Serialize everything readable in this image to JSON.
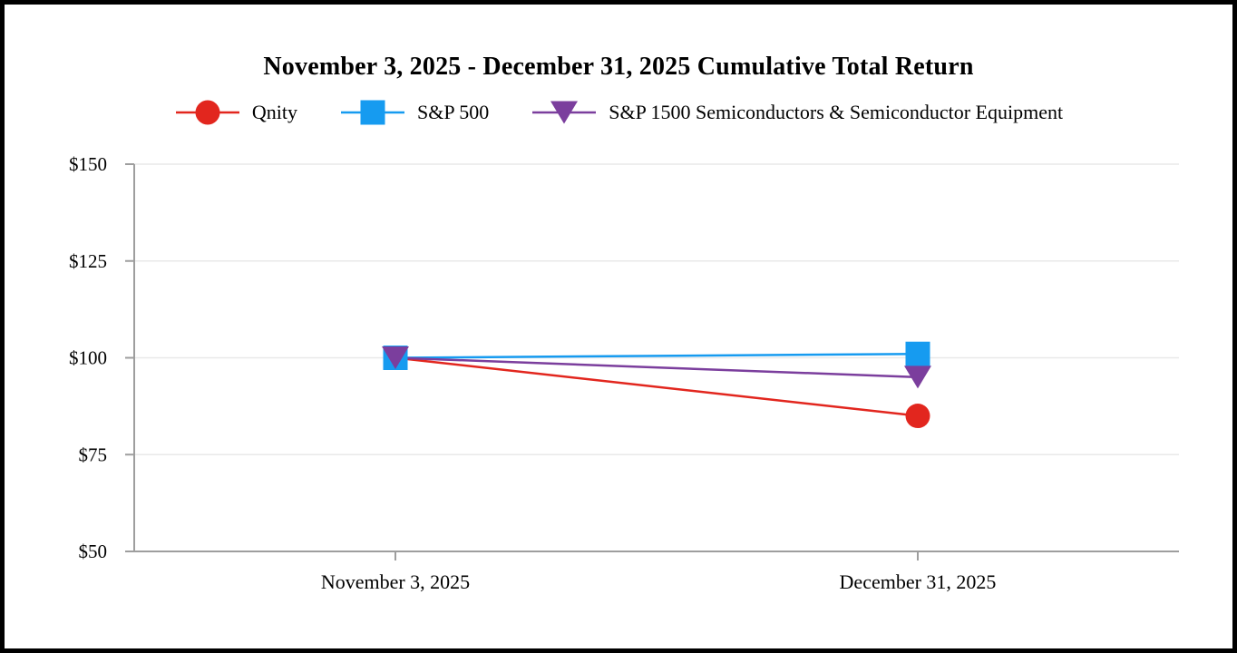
{
  "chart_data": {
    "type": "line",
    "title": "November 3, 2025 - December 31, 2025 Cumulative Total Return",
    "categories": [
      "November 3, 2025",
      "December 31, 2025"
    ],
    "series": [
      {
        "name": "Qnity",
        "marker": "circle-icon",
        "color": "#E2261E",
        "values": [
          100,
          85
        ]
      },
      {
        "name": "S&P 500",
        "marker": "square-icon",
        "color": "#169BF0",
        "values": [
          100,
          101
        ]
      },
      {
        "name": "S&P 1500 Semiconductors & Semiconductor Equipment",
        "marker": "triangle-down-icon",
        "color": "#7B3E9D",
        "values": [
          100,
          95
        ]
      }
    ],
    "xlabel": "",
    "ylabel": "",
    "ylim": [
      50,
      150
    ],
    "y_ticks": [
      50,
      75,
      100,
      125,
      150
    ],
    "y_tick_labels": [
      "$50",
      "$75",
      "$100",
      "$125",
      "$150"
    ],
    "grid": true,
    "legend_position": "top",
    "colors": {
      "background": "#FFFFFF",
      "page_border": "#000000",
      "axis": "#9E9E9E",
      "grid": "#E9E9E9",
      "text": "#000000"
    }
  }
}
